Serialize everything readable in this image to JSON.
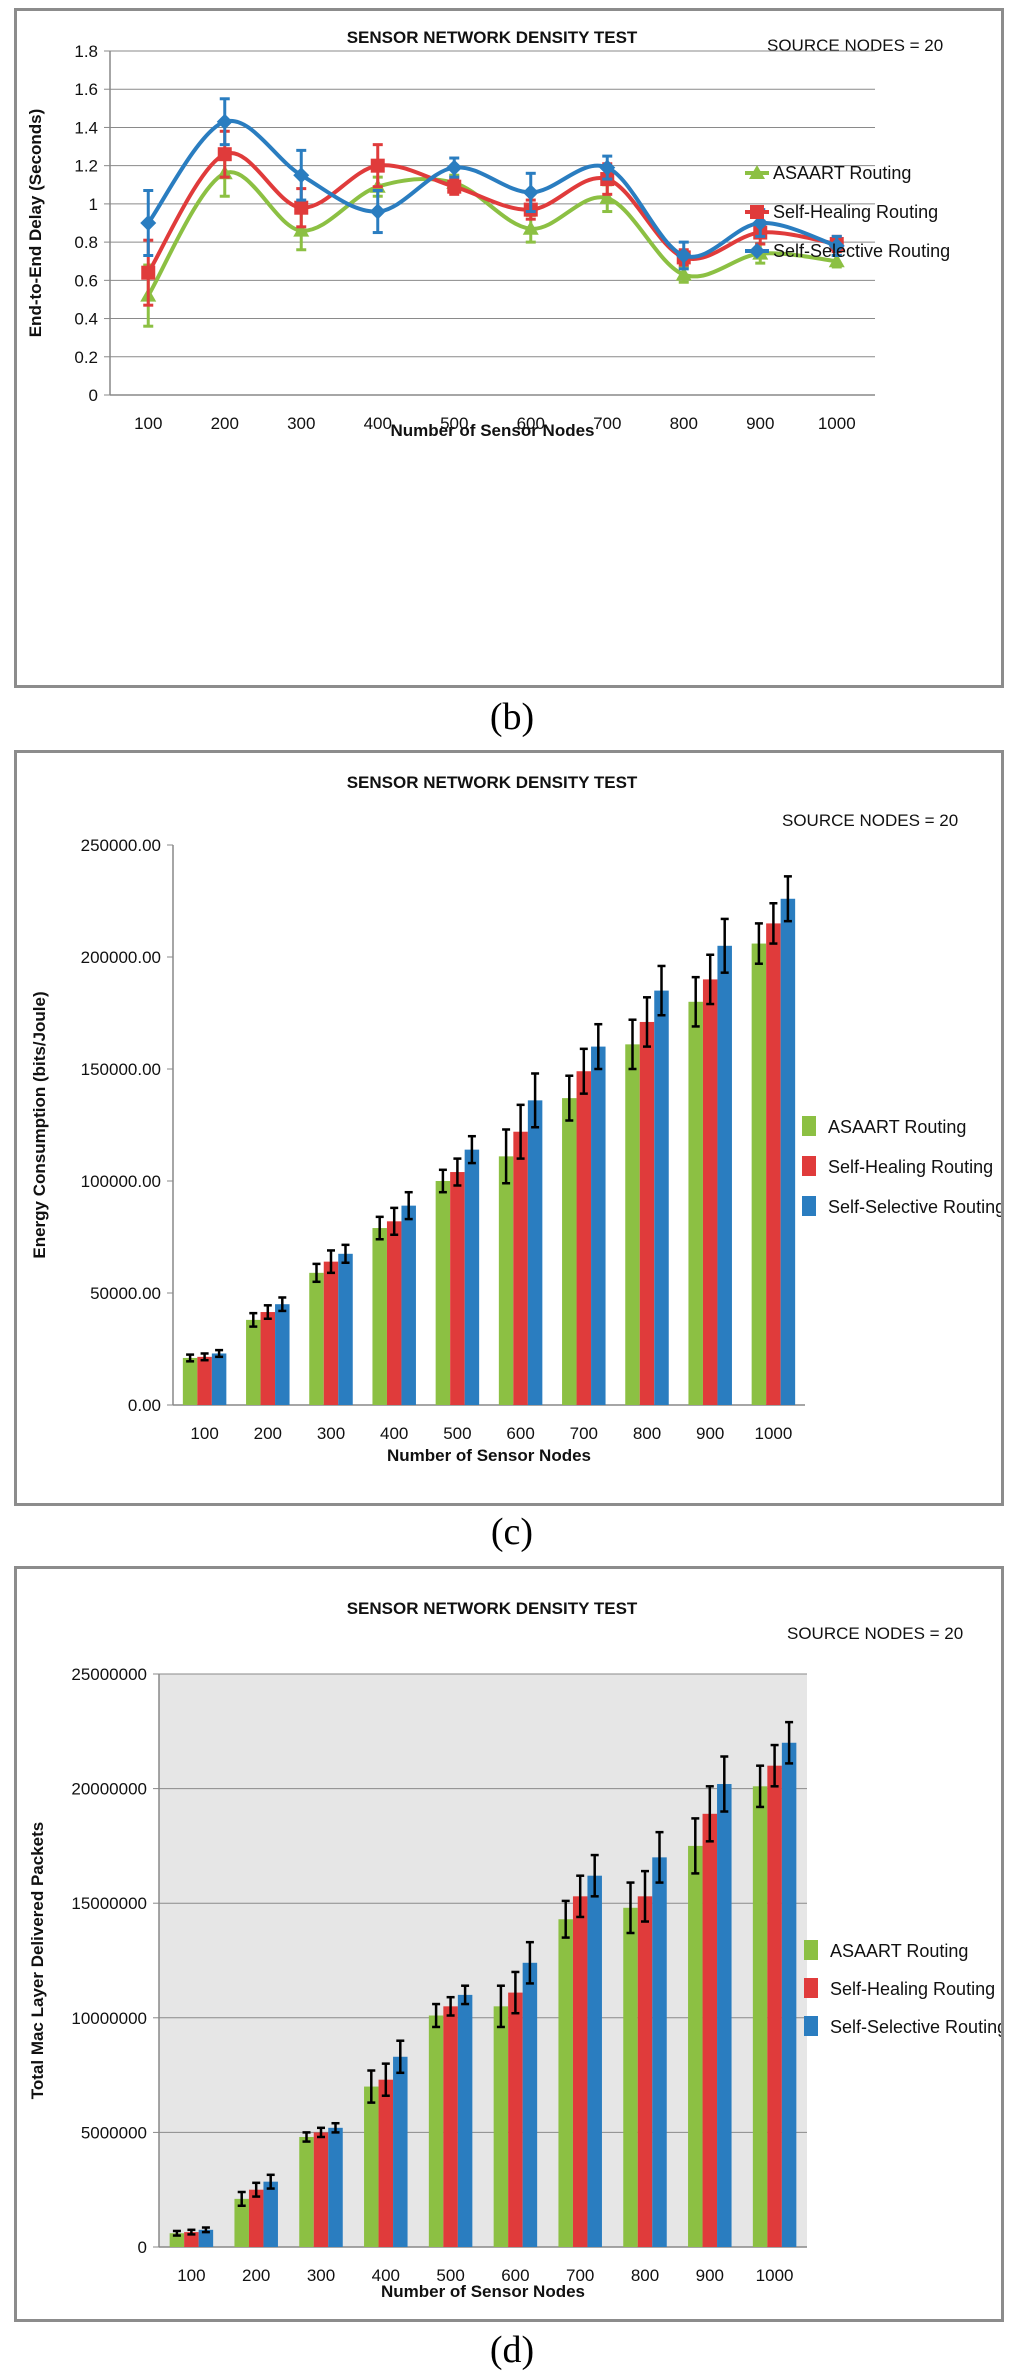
{
  "colors": {
    "asaart": "#8cc043",
    "self_healing": "#e03b3b",
    "self_selective": "#2a7dc0",
    "error_bar": "#000000",
    "frame": "#8c8c8c",
    "plot_bg_d": "#e6e6e6"
  },
  "chart_data": [
    {
      "panel": "b",
      "caption": "(b)",
      "type": "line",
      "title": "SENSOR NETWORK DENSITY TEST",
      "annotation": "SOURCE NODES = 20",
      "xlabel": "Number of Sensor Nodes",
      "ylabel": "End-to-End Delay (Seconds)",
      "categories": [
        "100",
        "200",
        "300",
        "400",
        "500",
        "600",
        "700",
        "800",
        "900",
        "1000"
      ],
      "ylim": [
        0,
        1.8
      ],
      "yticks": [
        "0",
        "0.2",
        "0.4",
        "0.6",
        "0.8",
        "1",
        "1.2",
        "1.4",
        "1.6",
        "1.8"
      ],
      "grid": true,
      "legend": "right",
      "series": [
        {
          "name": "ASAART Routing",
          "marker": "triangle",
          "values": [
            0.52,
            1.16,
            0.86,
            1.09,
            1.11,
            0.87,
            1.03,
            0.63,
            0.74,
            0.7
          ],
          "errors": [
            0.16,
            0.12,
            0.1,
            0.05,
            0.04,
            0.07,
            0.07,
            0.04,
            0.05,
            0.03
          ]
        },
        {
          "name": "Self-Healing Routing",
          "marker": "square",
          "values": [
            0.64,
            1.26,
            0.98,
            1.2,
            1.09,
            0.97,
            1.13,
            0.72,
            0.85,
            0.79
          ],
          "errors": [
            0.17,
            0.12,
            0.1,
            0.11,
            0.04,
            0.05,
            0.08,
            0.04,
            0.06,
            0.04
          ]
        },
        {
          "name": "Self-Selective Routing",
          "marker": "diamond",
          "values": [
            0.9,
            1.43,
            1.15,
            0.96,
            1.19,
            1.06,
            1.19,
            0.73,
            0.9,
            0.78
          ],
          "errors": [
            0.17,
            0.12,
            0.13,
            0.11,
            0.05,
            0.1,
            0.06,
            0.07,
            0.07,
            0.05
          ]
        }
      ]
    },
    {
      "panel": "c",
      "caption": "(c)",
      "type": "bar",
      "title": "SENSOR NETWORK DENSITY TEST",
      "annotation": "SOURCE NODES = 20",
      "xlabel": "Number of Sensor Nodes",
      "ylabel": "Energy Consumption (bits/Joule)",
      "categories": [
        "100",
        "200",
        "300",
        "400",
        "500",
        "600",
        "700",
        "800",
        "900",
        "1000"
      ],
      "ylim": [
        0,
        250000
      ],
      "yticks": [
        "0.00",
        "50000.00",
        "100000.00",
        "150000.00",
        "200000.00",
        "250000.00"
      ],
      "grid": false,
      "legend": "right",
      "series": [
        {
          "name": "ASAART Routing",
          "values": [
            21000,
            38000,
            59000,
            79000,
            100000,
            111000,
            137000,
            161000,
            180000,
            206000
          ],
          "errors": [
            1500,
            3000,
            4000,
            5000,
            5000,
            12000,
            10000,
            11000,
            11000,
            9000
          ]
        },
        {
          "name": "Self-Healing Routing",
          "values": [
            21500,
            41500,
            64000,
            82000,
            104000,
            122000,
            149000,
            171000,
            190000,
            215000
          ],
          "errors": [
            1500,
            3000,
            5000,
            6000,
            6000,
            12000,
            10000,
            11000,
            11000,
            9000
          ]
        },
        {
          "name": "Self-Selective Routing",
          "values": [
            23000,
            45000,
            67500,
            89000,
            114000,
            136000,
            160000,
            185000,
            205000,
            226000
          ],
          "errors": [
            1500,
            3000,
            4000,
            6000,
            6000,
            12000,
            10000,
            11000,
            12000,
            10000
          ]
        }
      ]
    },
    {
      "panel": "d",
      "caption": "(d)",
      "type": "bar",
      "title": "SENSOR NETWORK DENSITY TEST",
      "annotation": "SOURCE NODES = 20",
      "xlabel": "Number of Sensor Nodes",
      "ylabel": "Total Mac Layer Delivered Packets",
      "categories": [
        "100",
        "200",
        "300",
        "400",
        "500",
        "600",
        "700",
        "800",
        "900",
        "1000"
      ],
      "ylim": [
        0,
        25000000
      ],
      "yticks": [
        "0",
        "5000000",
        "10000000",
        "15000000",
        "20000000",
        "25000000"
      ],
      "grid": true,
      "legend": "right",
      "series": [
        {
          "name": "ASAART Routing",
          "values": [
            600000,
            2100000,
            4800000,
            7000000,
            10100000,
            10500000,
            14300000,
            14800000,
            17500000,
            20100000
          ],
          "errors": [
            100000,
            300000,
            200000,
            700000,
            500000,
            900000,
            800000,
            1100000,
            1200000,
            900000
          ]
        },
        {
          "name": "Self-Healing Routing",
          "values": [
            650000,
            2500000,
            5000000,
            7300000,
            10500000,
            11100000,
            15300000,
            15300000,
            18900000,
            21000000
          ],
          "errors": [
            100000,
            300000,
            200000,
            700000,
            400000,
            900000,
            900000,
            1100000,
            1200000,
            900000
          ]
        },
        {
          "name": "Self-Selective Routing",
          "values": [
            750000,
            2850000,
            5200000,
            8300000,
            11000000,
            12400000,
            16200000,
            17000000,
            20200000,
            22000000
          ],
          "errors": [
            100000,
            300000,
            200000,
            700000,
            400000,
            900000,
            900000,
            1100000,
            1200000,
            900000
          ]
        }
      ]
    }
  ]
}
